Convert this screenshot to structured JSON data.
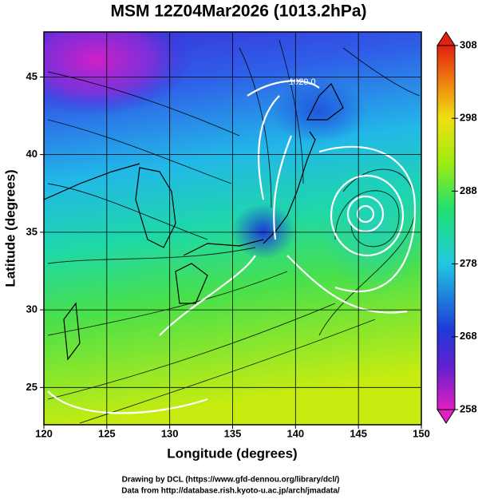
{
  "chart_data": {
    "type": "map",
    "title": "MSM 12Z04Mar2026 (1013.2hPa)",
    "x_label": "Longitude (degrees)",
    "y_label": "Latitude  (degrees)",
    "xlim": [
      120,
      150
    ],
    "ylim": [
      22.6,
      47.9
    ],
    "xticks": [
      120,
      125,
      130,
      135,
      140,
      145,
      150
    ],
    "yticks": [
      25,
      30,
      35,
      40,
      45
    ],
    "grid": true,
    "colorbar": {
      "lim": [
        258,
        308
      ],
      "ticks": [
        258,
        268,
        278,
        288,
        298,
        308
      ]
    },
    "contour_labels": [
      "1020.0"
    ],
    "credits": [
      "Drawing by DCL (https://www.gfd-dennou.org/library/dcl/)",
      "Data from http://database.rish.kyoto-u.ac.jp/arch/jmadata/"
    ]
  }
}
